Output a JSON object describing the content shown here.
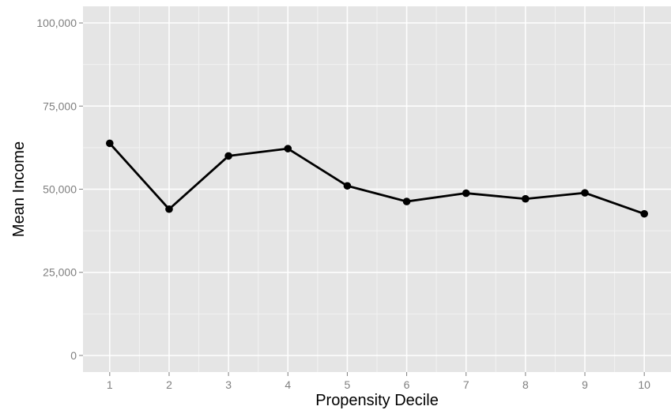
{
  "chart_data": {
    "type": "line",
    "title": "",
    "xlabel": "Propensity Decile",
    "ylabel": "Mean Income",
    "x": [
      1,
      2,
      3,
      4,
      5,
      6,
      7,
      8,
      9,
      10
    ],
    "x_tick_labels": [
      "1",
      "2",
      "3",
      "4",
      "5",
      "6",
      "7",
      "8",
      "9",
      "10"
    ],
    "series": [
      {
        "values": [
          63800,
          44000,
          60000,
          62200,
          51000,
          46300,
          48800,
          47100,
          48900,
          42600
        ]
      }
    ],
    "y_ticks": [
      0,
      25000,
      50000,
      75000,
      100000
    ],
    "y_tick_labels": [
      "0",
      "25,000",
      "50,000",
      "75,000",
      "100,000"
    ],
    "xlim": [
      0.55,
      10.45
    ],
    "ylim": [
      -5000,
      105000
    ],
    "grid": true,
    "legend": "none",
    "colors": {
      "panel_background": "#e5e5e5",
      "grid_major": "#ffffff",
      "grid_minor": "#f2f2f2",
      "line": "#000000",
      "tick_label": "#7f7f7f"
    }
  }
}
